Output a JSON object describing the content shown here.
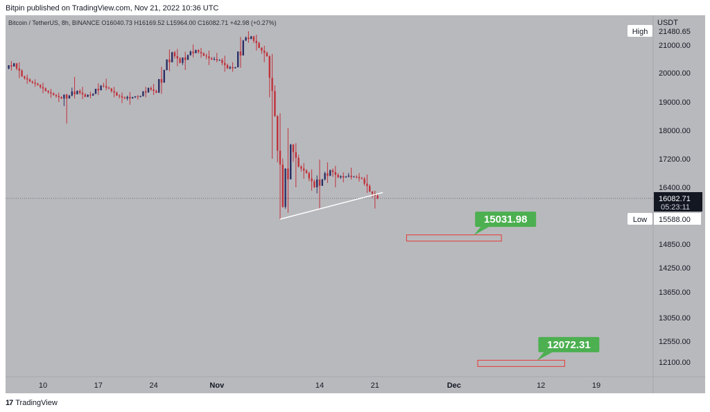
{
  "header": {
    "published": "Bitpin published on TradingView.com, Nov 21, 2022 10:36 UTC"
  },
  "footer": {
    "brand": "TradingView",
    "logo_glyph": "17"
  },
  "colors": {
    "background": "#b8b9bd",
    "up": "#2a2e64",
    "down": "#c0313a",
    "trendline": "#ffffff",
    "target_label": "#4caf50",
    "target_box": "#e53935",
    "price_tag": "#131722"
  },
  "chart_data": {
    "type": "candlestick",
    "symbol_line": {
      "name": "Bitcoin / TetherUS, 8h, BINANCE",
      "open": "O16040.73",
      "high": "H16169.52",
      "low": "L15964.00",
      "close": "C16082.71",
      "change": "+42.98 (+0.27%)"
    },
    "currency": "USDT",
    "y_ticks": [
      "21000.00",
      "20000.00",
      "19000.00",
      "18000.00",
      "17200.00",
      "16400.00",
      "14850.00",
      "14250.00",
      "13650.00",
      "13050.00",
      "12550.00",
      "12100.00"
    ],
    "y_tick_values": [
      21000,
      20000,
      19000,
      18000,
      17200,
      16400,
      14850,
      14250,
      13650,
      13050,
      12550,
      12100
    ],
    "x_ticks": [
      "10",
      "17",
      "24",
      "Nov",
      "14",
      "21",
      "Dec",
      "12",
      "19"
    ],
    "x_tick_dates": [
      "2022-10-10",
      "2022-10-17",
      "2022-10-24",
      "2022-11-01",
      "2022-11-14",
      "2022-11-21",
      "2022-12-01",
      "2022-12-12",
      "2022-12-19"
    ],
    "high_marker": {
      "label": "High",
      "value": "21480.65"
    },
    "low_marker": {
      "label": "Low",
      "value": "15588.00"
    },
    "current_price": {
      "value": "16082.71",
      "countdown": "05:23:11"
    },
    "targets": [
      {
        "label": "15031.98",
        "value": 15031.98,
        "box_from": "2022-11-25",
        "box_to": "2022-12-07"
      },
      {
        "label": "12072.31",
        "value": 12072.31,
        "box_from": "2022-12-04",
        "box_to": "2022-12-15"
      }
    ],
    "trendline": {
      "from": {
        "date": "2022-11-09",
        "value": 15588
      },
      "to": {
        "date": "2022-11-22",
        "value": 16250
      }
    },
    "candles": [
      {
        "d": "2022-10-06",
        "o": 20150,
        "h": 20420,
        "l": 20080,
        "c": 20340
      },
      {
        "d": "2022-10-07",
        "o": 20340,
        "h": 20380,
        "l": 19820,
        "c": 19880
      },
      {
        "d": "2022-10-08",
        "o": 19880,
        "h": 19940,
        "l": 19620,
        "c": 19700
      },
      {
        "d": "2022-10-09",
        "o": 19700,
        "h": 19780,
        "l": 19520,
        "c": 19580
      },
      {
        "d": "2022-10-10",
        "o": 19580,
        "h": 19660,
        "l": 19300,
        "c": 19380
      },
      {
        "d": "2022-10-11",
        "o": 19380,
        "h": 19450,
        "l": 19140,
        "c": 19240
      },
      {
        "d": "2022-10-12",
        "o": 19240,
        "h": 19320,
        "l": 19000,
        "c": 19120
      },
      {
        "d": "2022-10-13",
        "o": 19120,
        "h": 19280,
        "l": 18240,
        "c": 19220
      },
      {
        "d": "2022-10-14",
        "o": 19220,
        "h": 19860,
        "l": 19120,
        "c": 19380
      },
      {
        "d": "2022-10-15",
        "o": 19380,
        "h": 19520,
        "l": 19100,
        "c": 19180
      },
      {
        "d": "2022-10-16",
        "o": 19180,
        "h": 19350,
        "l": 19130,
        "c": 19280
      },
      {
        "d": "2022-10-17",
        "o": 19280,
        "h": 19640,
        "l": 19240,
        "c": 19560
      },
      {
        "d": "2022-10-18",
        "o": 19560,
        "h": 19800,
        "l": 19400,
        "c": 19460
      },
      {
        "d": "2022-10-19",
        "o": 19460,
        "h": 19520,
        "l": 19160,
        "c": 19220
      },
      {
        "d": "2022-10-20",
        "o": 19220,
        "h": 19320,
        "l": 18960,
        "c": 19120
      },
      {
        "d": "2022-10-21",
        "o": 19120,
        "h": 19340,
        "l": 18900,
        "c": 19160
      },
      {
        "d": "2022-10-22",
        "o": 19160,
        "h": 19240,
        "l": 19080,
        "c": 19200
      },
      {
        "d": "2022-10-23",
        "o": 19200,
        "h": 19520,
        "l": 19160,
        "c": 19480
      },
      {
        "d": "2022-10-24",
        "o": 19480,
        "h": 19620,
        "l": 19240,
        "c": 19320
      },
      {
        "d": "2022-10-25",
        "o": 19320,
        "h": 20220,
        "l": 19280,
        "c": 20100
      },
      {
        "d": "2022-10-26",
        "o": 20100,
        "h": 20840,
        "l": 20060,
        "c": 20740
      },
      {
        "d": "2022-10-27",
        "o": 20740,
        "h": 20860,
        "l": 20240,
        "c": 20360
      },
      {
        "d": "2022-10-28",
        "o": 20360,
        "h": 20760,
        "l": 20100,
        "c": 20640
      },
      {
        "d": "2022-10-29",
        "o": 20640,
        "h": 21020,
        "l": 20560,
        "c": 20820
      },
      {
        "d": "2022-10-30",
        "o": 20820,
        "h": 20900,
        "l": 20540,
        "c": 20620
      },
      {
        "d": "2022-10-31",
        "o": 20620,
        "h": 20800,
        "l": 20280,
        "c": 20480
      },
      {
        "d": "2022-11-01",
        "o": 20480,
        "h": 20720,
        "l": 20380,
        "c": 20460
      },
      {
        "d": "2022-11-02",
        "o": 20460,
        "h": 20620,
        "l": 20040,
        "c": 20160
      },
      {
        "d": "2022-11-03",
        "o": 20160,
        "h": 20380,
        "l": 20040,
        "c": 20200
      },
      {
        "d": "2022-11-04",
        "o": 20200,
        "h": 21280,
        "l": 20180,
        "c": 21160
      },
      {
        "d": "2022-11-05",
        "o": 21160,
        "h": 21480,
        "l": 21080,
        "c": 21300
      },
      {
        "d": "2022-11-06",
        "o": 21300,
        "h": 21360,
        "l": 20800,
        "c": 20900
      },
      {
        "d": "2022-11-07",
        "o": 20900,
        "h": 20980,
        "l": 20380,
        "c": 20600
      },
      {
        "d": "2022-11-08",
        "o": 20600,
        "h": 20680,
        "l": 17200,
        "c": 18500
      },
      {
        "d": "2022-11-09",
        "o": 18500,
        "h": 18600,
        "l": 15588,
        "c": 15880
      },
      {
        "d": "2022-11-10",
        "o": 15880,
        "h": 18080,
        "l": 15740,
        "c": 17600
      },
      {
        "d": "2022-11-11",
        "o": 17600,
        "h": 17640,
        "l": 16400,
        "c": 16980
      },
      {
        "d": "2022-11-12",
        "o": 16980,
        "h": 17080,
        "l": 16640,
        "c": 16800
      },
      {
        "d": "2022-11-13",
        "o": 16800,
        "h": 16900,
        "l": 16300,
        "c": 16400
      },
      {
        "d": "2022-11-14",
        "o": 16400,
        "h": 17180,
        "l": 15820,
        "c": 16620
      },
      {
        "d": "2022-11-15",
        "o": 16620,
        "h": 17100,
        "l": 16520,
        "c": 16880
      },
      {
        "d": "2022-11-16",
        "o": 16880,
        "h": 17000,
        "l": 16400,
        "c": 16680
      },
      {
        "d": "2022-11-17",
        "o": 16680,
        "h": 16820,
        "l": 16540,
        "c": 16700
      },
      {
        "d": "2022-11-18",
        "o": 16700,
        "h": 16950,
        "l": 16620,
        "c": 16700
      },
      {
        "d": "2022-11-19",
        "o": 16700,
        "h": 16800,
        "l": 16560,
        "c": 16640
      },
      {
        "d": "2022-11-20",
        "o": 16640,
        "h": 16760,
        "l": 16240,
        "c": 16280
      },
      {
        "d": "2022-11-21",
        "o": 16280,
        "h": 16300,
        "l": 15840,
        "c": 16082.71
      }
    ]
  }
}
